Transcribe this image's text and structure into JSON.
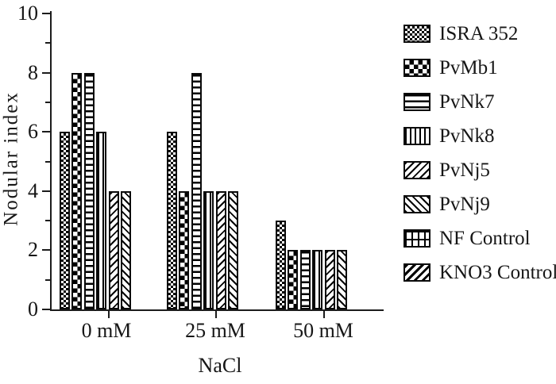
{
  "colors": {
    "ink": "#1c1c1c",
    "background": "#ffffff"
  },
  "chart_data": {
    "type": "bar",
    "title": "",
    "ylabel": "Nodular index",
    "xlabel": "NaCl",
    "ylim": [
      0,
      10
    ],
    "yticks_major": [
      0,
      2,
      4,
      6,
      8,
      10
    ],
    "yticks_minor": [
      1,
      3,
      5,
      7,
      9
    ],
    "grid": false,
    "legend_position": "right",
    "categories": [
      "0 mM",
      "25 mM",
      "50 mM"
    ],
    "series": [
      {
        "name": "ISRA 352",
        "pattern": "checker-fine",
        "values": [
          6,
          6,
          3
        ]
      },
      {
        "name": "PvMb1",
        "pattern": "checker-coarse",
        "values": [
          8,
          4,
          2
        ]
      },
      {
        "name": "PvNk7",
        "pattern": "stripes-horizontal",
        "values": [
          8,
          8,
          2
        ]
      },
      {
        "name": "PvNk8",
        "pattern": "stripes-vertical",
        "values": [
          6,
          4,
          2
        ]
      },
      {
        "name": "PvNj5",
        "pattern": "diagonal-forward",
        "values": [
          4,
          4,
          2
        ]
      },
      {
        "name": "PvNj9",
        "pattern": "diagonal-backward",
        "values": [
          4,
          4,
          2
        ]
      },
      {
        "name": "NF Control",
        "pattern": "grid",
        "values": [
          0,
          0,
          0
        ]
      },
      {
        "name": "KNO3 Control",
        "pattern": "diagonal-dense",
        "values": [
          0,
          0,
          0
        ]
      }
    ]
  }
}
